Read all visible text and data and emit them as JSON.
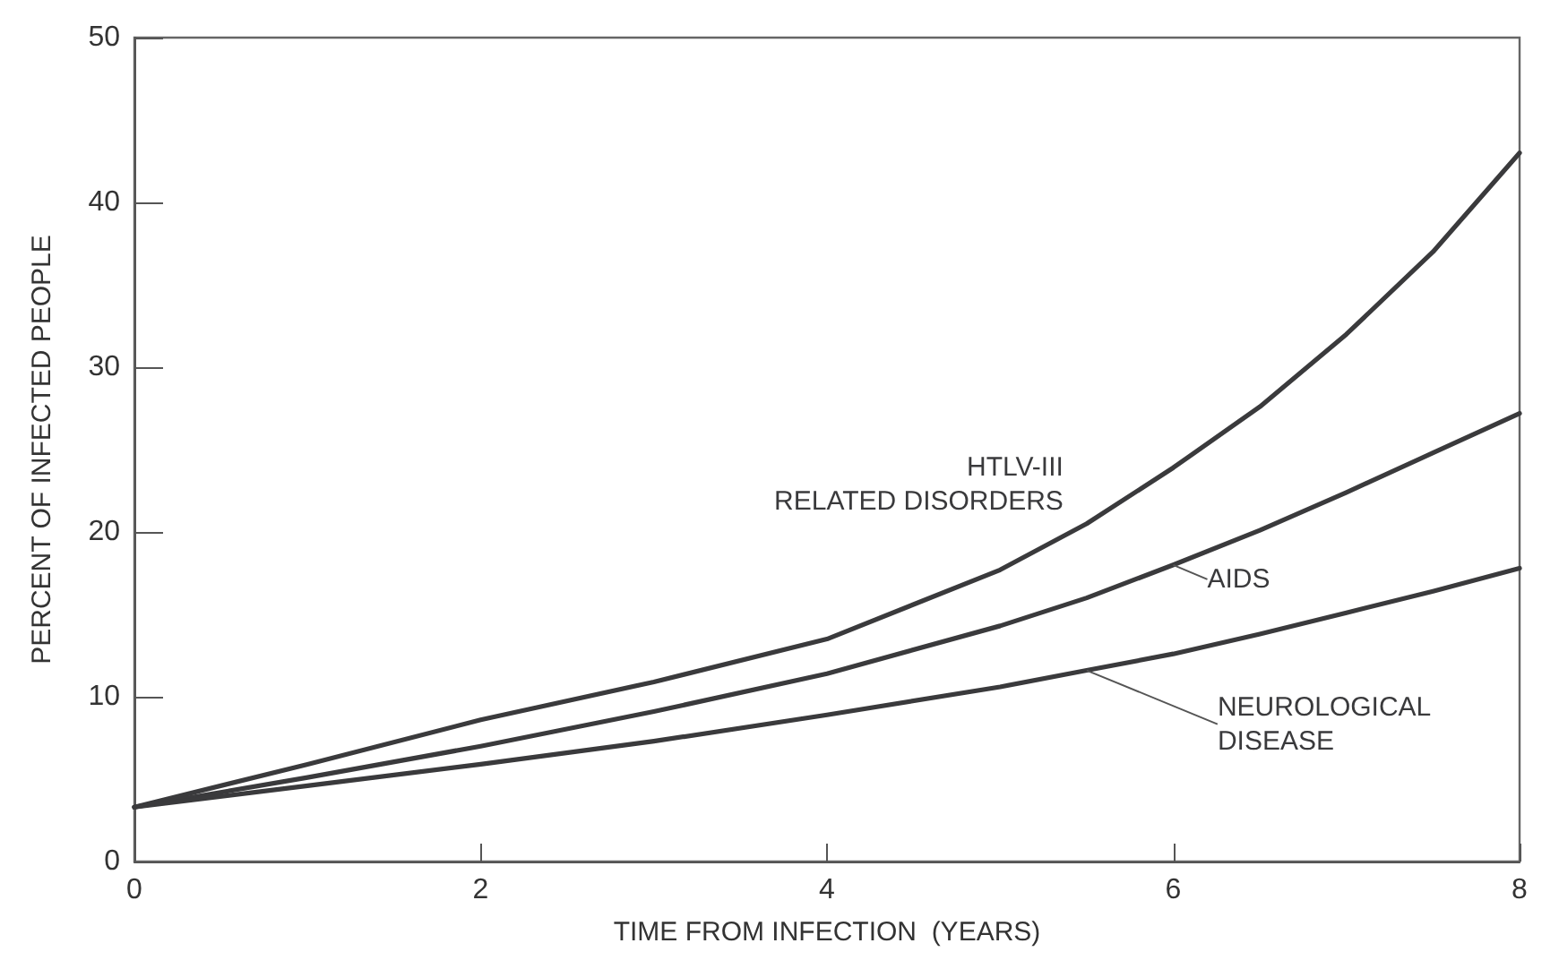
{
  "chart_data": {
    "type": "line",
    "xlabel": "TIME FROM INFECTION  (YEARS)",
    "ylabel": "PERCENT OF INFECTED PEOPLE",
    "x": [
      0,
      1,
      2,
      3,
      4,
      5,
      5.5,
      6,
      6.5,
      7,
      7.5,
      8
    ],
    "series": [
      {
        "name": "HTLV-III\nRELATED DISORDERS",
        "color": "#3a3a3c",
        "values": [
          3.3,
          5.9,
          8.6,
          10.9,
          13.5,
          17.7,
          20.5,
          23.9,
          27.6,
          32,
          37,
          43
        ]
      },
      {
        "name": "AIDS",
        "color": "#3a3a3c",
        "values": [
          3.3,
          5.1,
          7.0,
          9.1,
          11.4,
          14.3,
          16.0,
          18.0,
          20.1,
          22.4,
          24.8,
          27.2
        ]
      },
      {
        "name": "NEUROLOGICAL\nDISEASE",
        "color": "#3a3a3c",
        "values": [
          3.3,
          4.6,
          5.9,
          7.3,
          8.9,
          10.6,
          11.6,
          12.6,
          13.8,
          15.1,
          16.4,
          17.8
        ]
      }
    ],
    "xlim": [
      0,
      8
    ],
    "xticks": [
      0,
      2,
      4,
      6,
      8
    ],
    "ylim": [
      0,
      50
    ],
    "yticks": [
      0,
      10,
      20,
      30,
      40,
      50
    ],
    "grid": false,
    "legend": false,
    "marker": "none",
    "line_style": "solid"
  }
}
